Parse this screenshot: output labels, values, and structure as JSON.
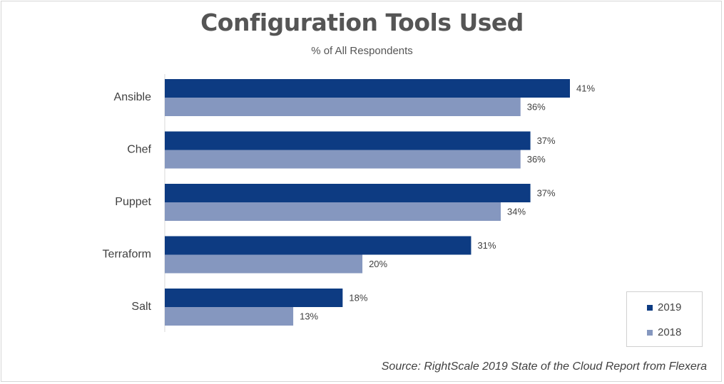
{
  "title": "Configuration Tools Used",
  "subtitle": "% of All Respondents",
  "source": "Source: RightScale 2019 State of the Cloud Report from Flexera",
  "colors": {
    "2019": "#0d3b82",
    "2018": "#8597bf"
  },
  "chart_data": {
    "type": "bar",
    "orientation": "horizontal",
    "title": "Configuration Tools Used",
    "subtitle": "% of All Respondents",
    "categories": [
      "Ansible",
      "Chef",
      "Puppet",
      "Terraform",
      "Salt"
    ],
    "series": [
      {
        "name": "2019",
        "values": [
          41,
          37,
          37,
          31,
          18
        ],
        "labels": [
          "41%",
          "37%",
          "37%",
          "31%",
          "18%"
        ]
      },
      {
        "name": "2018",
        "values": [
          36,
          36,
          34,
          20,
          13
        ],
        "labels": [
          "36%",
          "36%",
          "34%",
          "20%",
          "13%"
        ]
      }
    ],
    "xlim": [
      0,
      45
    ],
    "grid": false,
    "legend": "bottom-right"
  }
}
